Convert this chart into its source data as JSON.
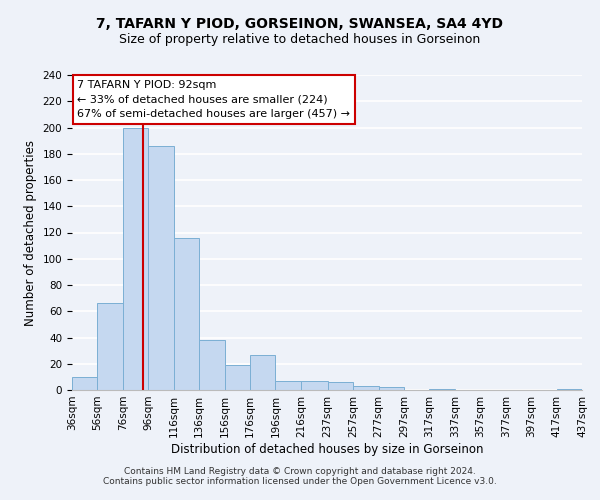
{
  "title": "7, TAFARN Y PIOD, GORSEINON, SWANSEA, SA4 4YD",
  "subtitle": "Size of property relative to detached houses in Gorseinon",
  "xlabel": "Distribution of detached houses by size in Gorseinon",
  "ylabel": "Number of detached properties",
  "bin_edges": [
    36,
    56,
    76,
    96,
    116,
    136,
    156,
    176,
    196,
    216,
    237,
    257,
    277,
    297,
    317,
    337,
    357,
    377,
    397,
    417,
    437
  ],
  "bar_heights": [
    10,
    66,
    200,
    186,
    116,
    38,
    19,
    27,
    7,
    7,
    6,
    3,
    2,
    0,
    1,
    0,
    0,
    0,
    0,
    1
  ],
  "bar_color": "#c5d8f0",
  "bar_edgecolor": "#7bafd4",
  "vline_x": 92,
  "vline_color": "#cc0000",
  "ylim": [
    0,
    240
  ],
  "yticks": [
    0,
    20,
    40,
    60,
    80,
    100,
    120,
    140,
    160,
    180,
    200,
    220,
    240
  ],
  "tick_labels": [
    "36sqm",
    "56sqm",
    "76sqm",
    "96sqm",
    "116sqm",
    "136sqm",
    "156sqm",
    "176sqm",
    "196sqm",
    "216sqm",
    "237sqm",
    "257sqm",
    "277sqm",
    "297sqm",
    "317sqm",
    "337sqm",
    "357sqm",
    "377sqm",
    "397sqm",
    "417sqm",
    "437sqm"
  ],
  "annotation_box_text": "7 TAFARN Y PIOD: 92sqm\n← 33% of detached houses are smaller (224)\n67% of semi-detached houses are larger (457) →",
  "footer_line1": "Contains HM Land Registry data © Crown copyright and database right 2024.",
  "footer_line2": "Contains public sector information licensed under the Open Government Licence v3.0.",
  "background_color": "#eef2f9",
  "grid_color": "#ffffff",
  "title_fontsize": 10,
  "subtitle_fontsize": 9,
  "axis_label_fontsize": 8.5,
  "tick_fontsize": 7.5,
  "annotation_fontsize": 8,
  "footer_fontsize": 6.5
}
